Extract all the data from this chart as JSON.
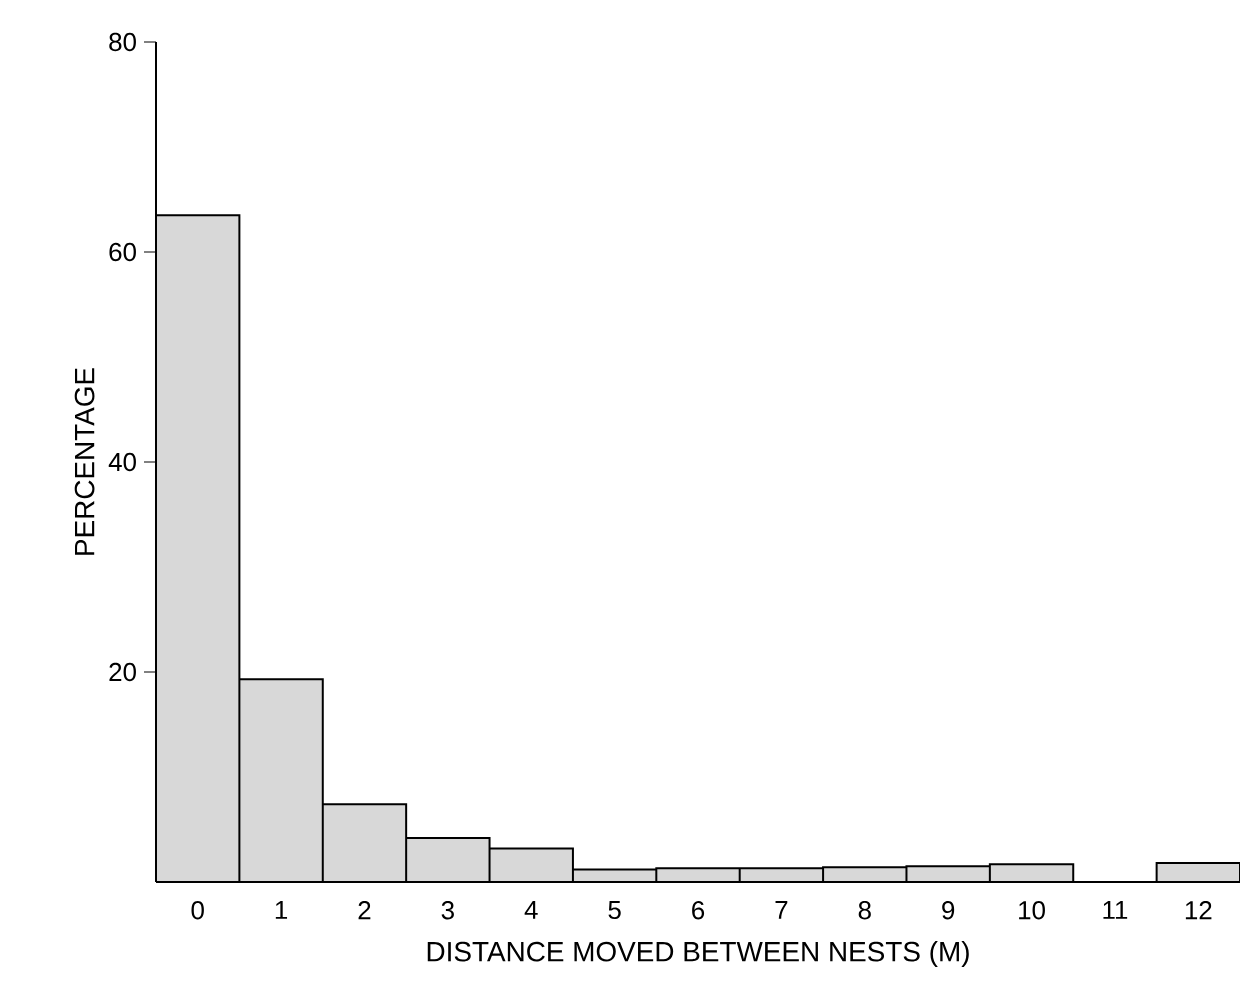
{
  "chart_data": {
    "type": "bar",
    "xlabel": "DISTANCE  MOVED  BETWEEN  NESTS  (M)",
    "ylabel": "PERCENTAGE",
    "categories": [
      "0",
      "1",
      "2",
      "3",
      "4",
      "5",
      "6",
      "7",
      "8",
      "9",
      "10",
      "11",
      "12"
    ],
    "values": [
      63.5,
      19.3,
      7.4,
      4.2,
      3.2,
      1.2,
      1.3,
      1.3,
      1.4,
      1.5,
      1.7,
      0,
      1.8
    ],
    "color": "#d8d8d8",
    "ylim": [
      0,
      80
    ],
    "yticks": [
      20,
      40,
      60,
      80
    ],
    "grid": false
  }
}
